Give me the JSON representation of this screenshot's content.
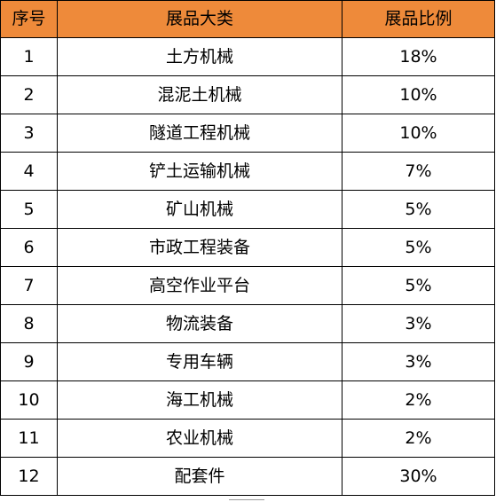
{
  "table": {
    "headers": [
      "序号",
      "展品大类",
      "展品比例"
    ],
    "rows": [
      {
        "no": "1",
        "category": "土方机械",
        "ratio": "18%"
      },
      {
        "no": "2",
        "category": "混泥土机械",
        "ratio": "10%"
      },
      {
        "no": "3",
        "category": "隧道工程机械",
        "ratio": "10%"
      },
      {
        "no": "4",
        "category": "铲土运输机械",
        "ratio": "7%"
      },
      {
        "no": "5",
        "category": "矿山机械",
        "ratio": "5%"
      },
      {
        "no": "6",
        "category": "市政工程装备",
        "ratio": "5%"
      },
      {
        "no": "7",
        "category": "高空作业平台",
        "ratio": "5%"
      },
      {
        "no": "8",
        "category": "物流装备",
        "ratio": "3%"
      },
      {
        "no": "9",
        "category": "专用车辆",
        "ratio": "3%"
      },
      {
        "no": "10",
        "category": "海工机械",
        "ratio": "2%"
      },
      {
        "no": "11",
        "category": "农业机械",
        "ratio": "2%"
      },
      {
        "no": "12",
        "category": "配套件",
        "ratio": "30%"
      }
    ]
  },
  "colors": {
    "header_background": "#ee8a3a",
    "border": "#000000"
  }
}
